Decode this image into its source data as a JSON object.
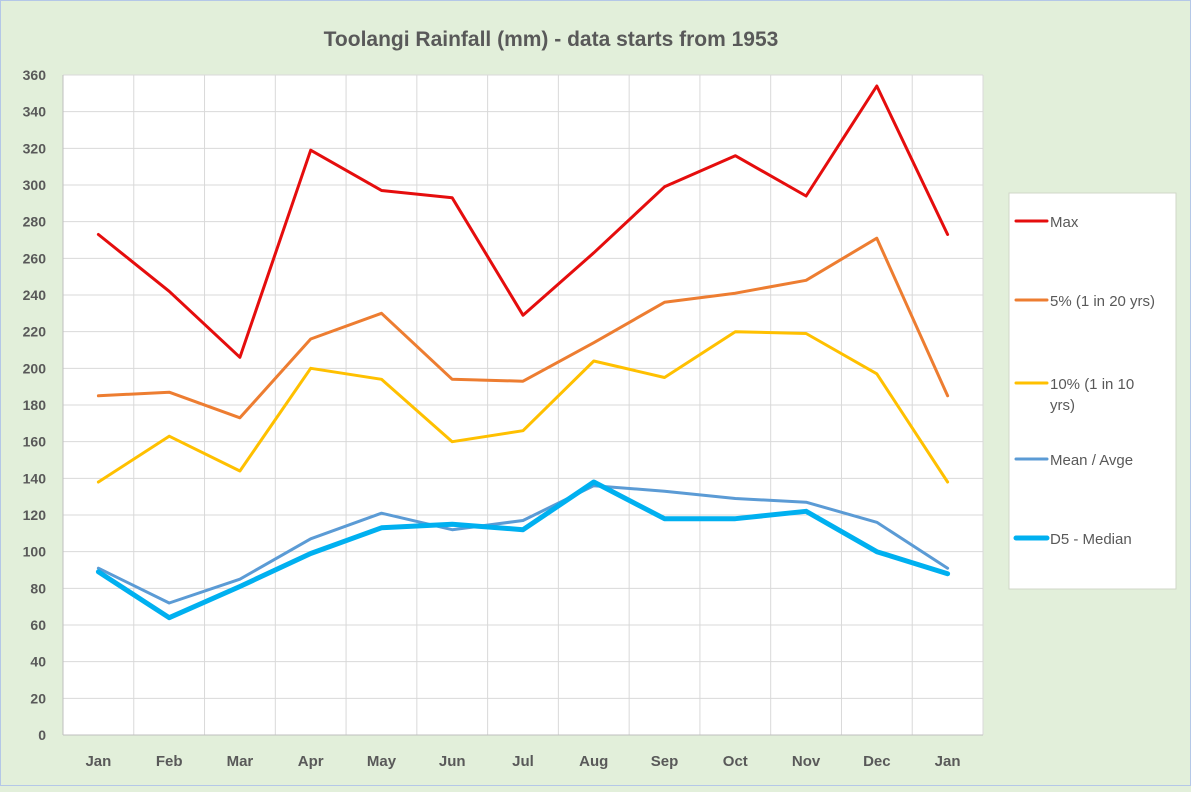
{
  "chart_data": {
    "type": "line",
    "title": "Toolangi Rainfall (mm) - data starts from 1953",
    "xlabel": "",
    "ylabel": "",
    "categories": [
      "Jan",
      "Feb",
      "Mar",
      "Apr",
      "May",
      "Jun",
      "Jul",
      "Aug",
      "Sep",
      "Oct",
      "Nov",
      "Dec",
      "Jan"
    ],
    "ylim": [
      0,
      360
    ],
    "yticks": [
      0,
      20,
      40,
      60,
      80,
      100,
      120,
      140,
      160,
      180,
      200,
      220,
      240,
      260,
      280,
      300,
      320,
      340,
      360
    ],
    "grid": true,
    "legend_position": "right",
    "series": [
      {
        "name": "Max",
        "legend_lines": [
          "Max"
        ],
        "color": "#e50d0d",
        "width": 3,
        "values": [
          273,
          242,
          206,
          319,
          297,
          293,
          229,
          263,
          299,
          316,
          294,
          354,
          273
        ]
      },
      {
        "name": "5% (1 in 20 yrs)",
        "legend_lines": [
          "5% (1 in 20 yrs)"
        ],
        "color": "#ed7d31",
        "width": 3,
        "values": [
          185,
          187,
          173,
          216,
          230,
          194,
          193,
          214,
          236,
          241,
          248,
          271,
          185
        ]
      },
      {
        "name": "10% (1 in 10 yrs)",
        "legend_lines": [
          "10% (1 in 10",
          "yrs)"
        ],
        "color": "#ffc000",
        "width": 3,
        "values": [
          138,
          163,
          144,
          200,
          194,
          160,
          166,
          204,
          195,
          220,
          219,
          197,
          138
        ]
      },
      {
        "name": "Mean / Avge",
        "legend_lines": [
          "Mean / Avge"
        ],
        "color": "#5b9bd5",
        "width": 3,
        "values": [
          91,
          72,
          85,
          107,
          121,
          112,
          117,
          136,
          133,
          129,
          127,
          116,
          91
        ]
      },
      {
        "name": "D5 - Median",
        "legend_lines": [
          "D5 - Median"
        ],
        "color": "#00b0f0",
        "width": 5,
        "values": [
          89,
          64,
          81,
          99,
          113,
          115,
          112,
          138,
          118,
          118,
          122,
          100,
          88
        ]
      }
    ]
  }
}
